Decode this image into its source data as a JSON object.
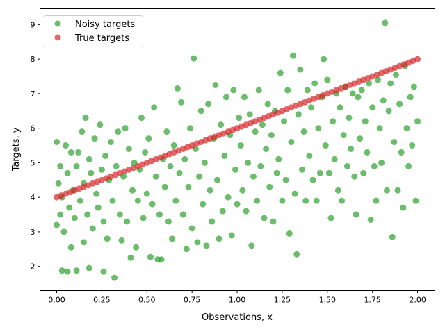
{
  "chart_data": {
    "type": "scatter",
    "xlabel": "Observations, x",
    "ylabel": "Targets, y",
    "xlim": [
      -0.0925,
      2.096
    ],
    "ylim": [
      1.3,
      9.46
    ],
    "xticks": [
      "0.00",
      "0.25",
      "0.50",
      "0.75",
      "1.00",
      "1.25",
      "1.50",
      "1.75",
      "2.00"
    ],
    "yticks": [
      "2",
      "3",
      "4",
      "5",
      "6",
      "7",
      "8",
      "9"
    ],
    "grid": false,
    "legend": "top-left",
    "series": [
      {
        "name": "Noisy targets",
        "color": "#2ca02c",
        "alpha": 0.7,
        "points": [
          [
            0.0,
            5.6
          ],
          [
            0.0,
            3.2
          ],
          [
            0.01,
            4.4
          ],
          [
            0.02,
            3.5
          ],
          [
            0.02,
            4.9
          ],
          [
            0.03,
            1.88
          ],
          [
            0.03,
            4.0
          ],
          [
            0.04,
            3.0
          ],
          [
            0.05,
            5.5
          ],
          [
            0.06,
            1.85
          ],
          [
            0.06,
            4.7
          ],
          [
            0.07,
            3.7
          ],
          [
            0.08,
            5.3
          ],
          [
            0.08,
            2.55
          ],
          [
            0.09,
            4.2
          ],
          [
            0.1,
            3.4
          ],
          [
            0.11,
            1.88
          ],
          [
            0.11,
            4.9
          ],
          [
            0.12,
            5.3
          ],
          [
            0.13,
            3.9
          ],
          [
            0.14,
            5.9
          ],
          [
            0.15,
            2.7
          ],
          [
            0.15,
            4.4
          ],
          [
            0.16,
            6.3
          ],
          [
            0.17,
            3.5
          ],
          [
            0.18,
            1.95
          ],
          [
            0.18,
            5.1
          ],
          [
            0.19,
            4.7
          ],
          [
            0.2,
            3.1
          ],
          [
            0.21,
            5.7
          ],
          [
            0.22,
            4.1
          ],
          [
            0.23,
            3.7
          ],
          [
            0.24,
            6.1
          ],
          [
            0.25,
            4.8
          ],
          [
            0.26,
            1.85
          ],
          [
            0.26,
            3.3
          ],
          [
            0.27,
            5.2
          ],
          [
            0.28,
            2.8
          ],
          [
            0.29,
            4.5
          ],
          [
            0.3,
            5.6
          ],
          [
            0.31,
            3.9
          ],
          [
            0.32,
            1.67
          ],
          [
            0.33,
            4.9
          ],
          [
            0.34,
            5.9
          ],
          [
            0.35,
            3.5
          ],
          [
            0.36,
            2.75
          ],
          [
            0.37,
            4.6
          ],
          [
            0.38,
            6.0
          ],
          [
            0.39,
            3.3
          ],
          [
            0.4,
            5.4
          ],
          [
            0.41,
            2.25
          ],
          [
            0.42,
            4.2
          ],
          [
            0.43,
            5.0
          ],
          [
            0.44,
            2.55
          ],
          [
            0.45,
            3.9
          ],
          [
            0.46,
            4.8
          ],
          [
            0.47,
            6.3
          ],
          [
            0.48,
            3.4
          ],
          [
            0.49,
            5.3
          ],
          [
            0.5,
            4.1
          ],
          [
            0.51,
            5.7
          ],
          [
            0.52,
            2.27
          ],
          [
            0.53,
            3.8
          ],
          [
            0.54,
            6.6
          ],
          [
            0.55,
            4.6
          ],
          [
            0.56,
            2.2
          ],
          [
            0.57,
            3.5
          ],
          [
            0.58,
            2.2
          ],
          [
            0.59,
            5.1
          ],
          [
            0.6,
            4.3
          ],
          [
            0.61,
            5.9
          ],
          [
            0.62,
            3.3
          ],
          [
            0.63,
            4.9
          ],
          [
            0.64,
            2.8
          ],
          [
            0.65,
            5.5
          ],
          [
            0.66,
            3.9
          ],
          [
            0.67,
            7.15
          ],
          [
            0.68,
            4.7
          ],
          [
            0.69,
            6.75
          ],
          [
            0.7,
            3.5
          ],
          [
            0.71,
            5.1
          ],
          [
            0.72,
            2.5
          ],
          [
            0.73,
            4.3
          ],
          [
            0.74,
            6.0
          ],
          [
            0.75,
            3.1
          ],
          [
            0.76,
            8.02
          ],
          [
            0.77,
            5.4
          ],
          [
            0.78,
            2.7
          ],
          [
            0.79,
            4.6
          ],
          [
            0.8,
            6.5
          ],
          [
            0.81,
            3.8
          ],
          [
            0.82,
            5.0
          ],
          [
            0.83,
            2.6
          ],
          [
            0.84,
            6.7
          ],
          [
            0.85,
            4.2
          ],
          [
            0.86,
            3.3
          ],
          [
            0.87,
            5.7
          ],
          [
            0.88,
            7.25
          ],
          [
            0.89,
            4.5
          ],
          [
            0.9,
            2.8
          ],
          [
            0.91,
            6.1
          ],
          [
            0.92,
            3.6
          ],
          [
            0.93,
            5.2
          ],
          [
            0.94,
            6.9
          ],
          [
            0.95,
            4.0
          ],
          [
            0.96,
            5.8
          ],
          [
            0.97,
            2.9
          ],
          [
            0.98,
            7.1
          ],
          [
            0.99,
            4.8
          ],
          [
            1.0,
            3.8
          ],
          [
            1.01,
            6.3
          ],
          [
            1.02,
            5.5
          ],
          [
            1.03,
            4.2
          ],
          [
            1.04,
            6.9
          ],
          [
            1.05,
            3.6
          ],
          [
            1.06,
            5.0
          ],
          [
            1.07,
            6.4
          ],
          [
            1.08,
            2.6
          ],
          [
            1.09,
            4.6
          ],
          [
            1.1,
            5.9
          ],
          [
            1.11,
            3.9
          ],
          [
            1.12,
            7.1
          ],
          [
            1.13,
            4.9
          ],
          [
            1.14,
            6.1
          ],
          [
            1.15,
            3.4
          ],
          [
            1.16,
            5.4
          ],
          [
            1.17,
            6.7
          ],
          [
            1.18,
            4.3
          ],
          [
            1.19,
            5.8
          ],
          [
            1.2,
            3.3
          ],
          [
            1.21,
            6.5
          ],
          [
            1.22,
            4.7
          ],
          [
            1.23,
            5.1
          ],
          [
            1.24,
            7.6
          ],
          [
            1.25,
            3.9
          ],
          [
            1.26,
            6.2
          ],
          [
            1.27,
            4.5
          ],
          [
            1.28,
            7.1
          ],
          [
            1.29,
            2.95
          ],
          [
            1.3,
            5.6
          ],
          [
            1.31,
            8.1
          ],
          [
            1.32,
            4.1
          ],
          [
            1.33,
            2.35
          ],
          [
            1.34,
            6.4
          ],
          [
            1.35,
            7.7
          ],
          [
            1.36,
            4.8
          ],
          [
            1.37,
            5.9
          ],
          [
            1.38,
            3.9
          ],
          [
            1.39,
            7.1
          ],
          [
            1.4,
            5.2
          ],
          [
            1.41,
            6.6
          ],
          [
            1.42,
            4.5
          ],
          [
            1.43,
            7.3
          ],
          [
            1.44,
            3.9
          ],
          [
            1.45,
            6.0
          ],
          [
            1.46,
            4.7
          ],
          [
            1.47,
            6.9
          ],
          [
            1.48,
            8.0
          ],
          [
            1.49,
            5.5
          ],
          [
            1.5,
            7.4
          ],
          [
            1.51,
            4.7
          ],
          [
            1.52,
            3.4
          ],
          [
            1.53,
            6.2
          ],
          [
            1.54,
            5.1
          ],
          [
            1.55,
            7.0
          ],
          [
            1.56,
            4.2
          ],
          [
            1.57,
            6.6
          ],
          [
            1.58,
            3.9
          ],
          [
            1.59,
            5.8
          ],
          [
            1.6,
            7.2
          ],
          [
            1.61,
            4.9
          ],
          [
            1.62,
            6.3
          ],
          [
            1.63,
            5.4
          ],
          [
            1.64,
            7.0
          ],
          [
            1.65,
            4.6
          ],
          [
            1.66,
            3.5
          ],
          [
            1.67,
            6.9
          ],
          [
            1.68,
            5.7
          ],
          [
            1.69,
            7.1
          ],
          [
            1.7,
            4.7
          ],
          [
            1.71,
            6.2
          ],
          [
            1.72,
            5.3
          ],
          [
            1.73,
            7.3
          ],
          [
            1.74,
            3.35
          ],
          [
            1.75,
            6.6
          ],
          [
            1.76,
            4.9
          ],
          [
            1.77,
            3.9
          ],
          [
            1.78,
            7.4
          ],
          [
            1.79,
            6.0
          ],
          [
            1.8,
            5.0
          ],
          [
            1.81,
            6.8
          ],
          [
            1.82,
            9.05
          ],
          [
            1.83,
            4.2
          ],
          [
            1.84,
            6.5
          ],
          [
            1.85,
            7.3
          ],
          [
            1.86,
            2.85
          ],
          [
            1.87,
            5.6
          ],
          [
            1.88,
            7.55
          ],
          [
            1.89,
            4.2
          ],
          [
            1.9,
            6.7
          ],
          [
            1.91,
            5.3
          ],
          [
            1.92,
            3.7
          ],
          [
            1.93,
            7.8
          ],
          [
            1.94,
            6.0
          ],
          [
            1.95,
            4.9
          ],
          [
            1.96,
            6.9
          ],
          [
            1.97,
            5.5
          ],
          [
            1.98,
            7.2
          ],
          [
            1.99,
            3.9
          ],
          [
            2.0,
            6.2
          ]
        ]
      },
      {
        "name": "True targets",
        "color": "#d62728",
        "alpha": 0.7,
        "points": [
          [
            0.0,
            4.0
          ],
          [
            0.025,
            4.05
          ],
          [
            0.05,
            4.1
          ],
          [
            0.075,
            4.15
          ],
          [
            0.1,
            4.2
          ],
          [
            0.125,
            4.25
          ],
          [
            0.15,
            4.3
          ],
          [
            0.175,
            4.35
          ],
          [
            0.2,
            4.4
          ],
          [
            0.225,
            4.45
          ],
          [
            0.25,
            4.5
          ],
          [
            0.275,
            4.55
          ],
          [
            0.3,
            4.6
          ],
          [
            0.325,
            4.65
          ],
          [
            0.35,
            4.7
          ],
          [
            0.375,
            4.75
          ],
          [
            0.4,
            4.8
          ],
          [
            0.425,
            4.85
          ],
          [
            0.45,
            4.9
          ],
          [
            0.475,
            4.95
          ],
          [
            0.5,
            5.0
          ],
          [
            0.525,
            5.05
          ],
          [
            0.55,
            5.1
          ],
          [
            0.575,
            5.15
          ],
          [
            0.6,
            5.2
          ],
          [
            0.625,
            5.25
          ],
          [
            0.65,
            5.3
          ],
          [
            0.675,
            5.35
          ],
          [
            0.7,
            5.4
          ],
          [
            0.725,
            5.45
          ],
          [
            0.75,
            5.5
          ],
          [
            0.775,
            5.55
          ],
          [
            0.8,
            5.6
          ],
          [
            0.825,
            5.65
          ],
          [
            0.85,
            5.7
          ],
          [
            0.875,
            5.75
          ],
          [
            0.9,
            5.8
          ],
          [
            0.925,
            5.85
          ],
          [
            0.95,
            5.9
          ],
          [
            0.975,
            5.95
          ],
          [
            1.0,
            6.0
          ],
          [
            1.025,
            6.05
          ],
          [
            1.05,
            6.1
          ],
          [
            1.075,
            6.15
          ],
          [
            1.1,
            6.2
          ],
          [
            1.125,
            6.25
          ],
          [
            1.15,
            6.3
          ],
          [
            1.175,
            6.35
          ],
          [
            1.2,
            6.4
          ],
          [
            1.225,
            6.45
          ],
          [
            1.25,
            6.5
          ],
          [
            1.275,
            6.55
          ],
          [
            1.3,
            6.6
          ],
          [
            1.325,
            6.65
          ],
          [
            1.35,
            6.7
          ],
          [
            1.375,
            6.75
          ],
          [
            1.4,
            6.8
          ],
          [
            1.425,
            6.85
          ],
          [
            1.45,
            6.9
          ],
          [
            1.475,
            6.95
          ],
          [
            1.5,
            7.0
          ],
          [
            1.525,
            7.05
          ],
          [
            1.55,
            7.1
          ],
          [
            1.575,
            7.15
          ],
          [
            1.6,
            7.2
          ],
          [
            1.625,
            7.25
          ],
          [
            1.65,
            7.3
          ],
          [
            1.675,
            7.35
          ],
          [
            1.7,
            7.4
          ],
          [
            1.725,
            7.45
          ],
          [
            1.75,
            7.5
          ],
          [
            1.775,
            7.55
          ],
          [
            1.8,
            7.6
          ],
          [
            1.825,
            7.65
          ],
          [
            1.85,
            7.7
          ],
          [
            1.875,
            7.75
          ],
          [
            1.9,
            7.8
          ],
          [
            1.925,
            7.85
          ],
          [
            1.95,
            7.9
          ],
          [
            1.975,
            7.95
          ],
          [
            2.0,
            8.0
          ]
        ]
      }
    ]
  }
}
